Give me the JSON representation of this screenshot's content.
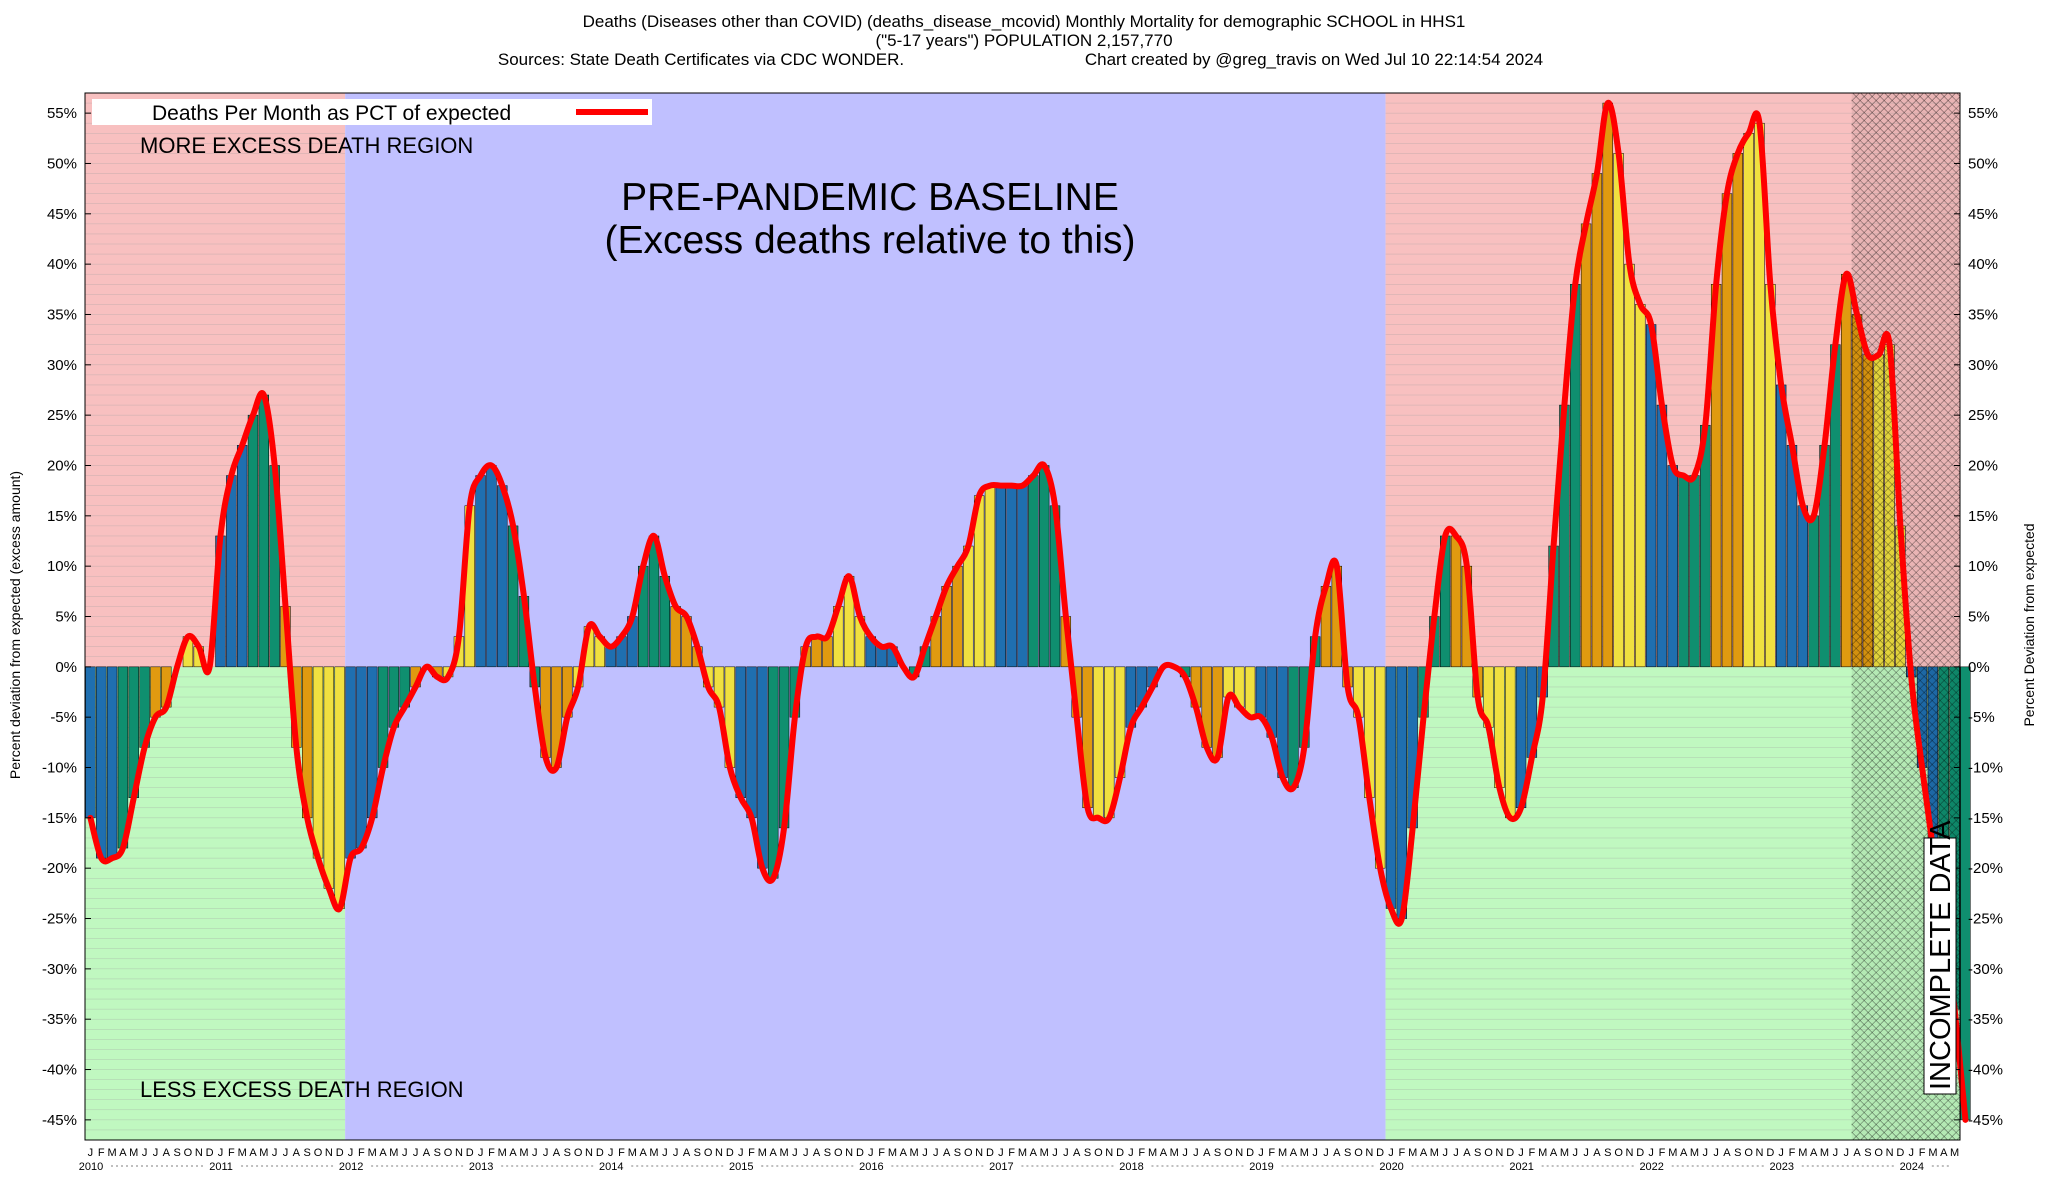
{
  "title": {
    "line1": "Deaths (Diseases other than COVID) (deaths_disease_mcovid) Monthly Mortality for demographic SCHOOL in HHS1",
    "line2": "(\"5-17 years\") POPULATION 2,157,770",
    "sources": "Sources: State Death Certificates via CDC WONDER.",
    "credit": "Chart created by @greg_travis on Wed Jul 10 22:14:54 2024"
  },
  "annotations": {
    "more_excess": "MORE EXCESS DEATH REGION",
    "less_excess": "LESS EXCESS DEATH REGION",
    "baseline_line1": "PRE-PANDEMIC BASELINE",
    "baseline_line2": "(Excess deaths relative to this)",
    "incomplete": "INCOMPLETE DATA"
  },
  "colors": {
    "more_region": "#f8c0c0",
    "less_region": "#c0f8c0",
    "baseline_region": "#c0c0ff",
    "line": "#ff0000",
    "bar_blue": "#1f6fb0",
    "bar_green": "#0f8f6f",
    "bar_orange": "#e09a10",
    "bar_yellow": "#f0e040"
  },
  "chart_data": {
    "type": "bar",
    "title": "Deaths (Diseases other than COVID) (deaths_disease_mcovid) Monthly Mortality for demographic SCHOOL in HHS1",
    "legend": {
      "label": "Deaths Per Month as PCT of expected",
      "placement": "top-left"
    },
    "ylabel_left": "Percent deviation from expected (excess amount)",
    "ylabel_right": "Percent Deviation from expected",
    "ylim": [
      -47,
      57
    ],
    "yticks": [
      55,
      50,
      45,
      40,
      35,
      30,
      25,
      20,
      15,
      10,
      5,
      0,
      -5,
      -10,
      -15,
      -20,
      -25,
      -30,
      -35,
      -40,
      -45
    ],
    "ytick_labels": [
      "55%",
      "50%",
      "45%",
      "40%",
      "35%",
      "30%",
      "25%",
      "20%",
      "15%",
      "10%",
      "5%",
      "0%",
      "-5%",
      "-10%",
      "-15%",
      "-20%",
      "-25%",
      "-30%",
      "-35%",
      "-40%",
      "-45%"
    ],
    "month_labels": [
      "J",
      "F",
      "M",
      "A",
      "M",
      "J",
      "J",
      "A",
      "S",
      "O",
      "N",
      "D"
    ],
    "years": [
      "2010",
      "2011",
      "2012",
      "2013",
      "2014",
      "2015",
      "2016",
      "2017",
      "2018",
      "2019",
      "2020",
      "2021",
      "2022",
      "2023",
      "2024"
    ],
    "start": "2010-01",
    "baseline_period": [
      "2012-01",
      "2019-12"
    ],
    "incomplete_from": "2023-08",
    "grid": true,
    "values": [
      -15,
      -19,
      -19,
      -18,
      -13,
      -8,
      -5,
      -4,
      0,
      3,
      2,
      0,
      13,
      19,
      22,
      25,
      27,
      20,
      6,
      -8,
      -15,
      -19,
      -22,
      -24,
      -19,
      -18,
      -15,
      -10,
      -6,
      -4,
      -2,
      0,
      -1,
      -1,
      3,
      16,
      19,
      20,
      18,
      14,
      7,
      -2,
      -9,
      -10,
      -5,
      -2,
      4,
      3,
      2,
      3,
      5,
      10,
      13,
      9,
      6,
      5,
      2,
      -2,
      -4,
      -10,
      -13,
      -15,
      -20,
      -21,
      -16,
      -5,
      2,
      3,
      3,
      6,
      9,
      5,
      3,
      2,
      2,
      0,
      -1,
      2,
      5,
      8,
      10,
      12,
      17,
      18,
      18,
      18,
      18,
      19,
      20,
      16,
      5,
      -5,
      -14,
      -15,
      -15,
      -11,
      -6,
      -4,
      -2,
      0,
      0,
      -1,
      -4,
      -8,
      -9,
      -3,
      -4,
      -5,
      -5,
      -7,
      -11,
      -12,
      -8,
      3,
      8,
      10,
      -2,
      -5,
      -13,
      -20,
      -24,
      -25,
      -16,
      -5,
      5,
      13,
      13,
      10,
      -3,
      -6,
      -12,
      -15,
      -14,
      -9,
      -3,
      12,
      26,
      38,
      44,
      49,
      56,
      51,
      40,
      36,
      34,
      26,
      20,
      19,
      19,
      24,
      38,
      47,
      51,
      53,
      54,
      38,
      28,
      22,
      16,
      15,
      22,
      32,
      39,
      35,
      31,
      31,
      32,
      14,
      -1,
      -10,
      -18,
      -25,
      -34,
      -45
    ]
  }
}
